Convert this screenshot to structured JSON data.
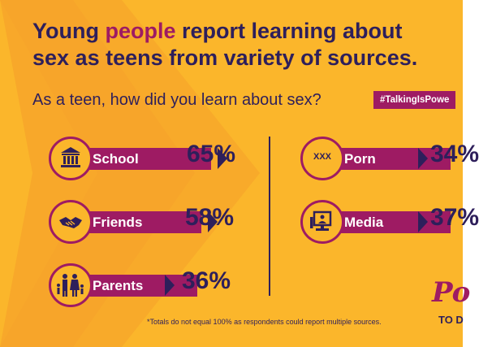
{
  "colors": {
    "background": "#FBB62B",
    "accent": "#9E1B63",
    "navy": "#2E1F5B"
  },
  "title_line1_a": "Young ",
  "title_line1_highlight": "people",
  "title_line1_b": " report learning about",
  "title_line2": "sex as teens from variety of sources.",
  "subtitle": "As a teen, how did you learn about sex?",
  "hashtag": "#TalkingIsPowe",
  "footnote": "*Totals do not equal 100% as respondents could report multiple sources.",
  "logo_top": "Po",
  "logo_bottom": "TO D",
  "chart_data": {
    "type": "bar",
    "categories": [
      "School",
      "Friends",
      "Parents",
      "Porn",
      "Media"
    ],
    "values": [
      65,
      58,
      36,
      34,
      37
    ],
    "value_labels": [
      "65%",
      "58%",
      "36%",
      "34%",
      "37%"
    ],
    "icons": [
      "school-building-icon",
      "handshake-icon",
      "family-icon",
      "xxx-icon",
      "computer-icon"
    ],
    "xxx_text": "XXX",
    "unit": "%"
  }
}
